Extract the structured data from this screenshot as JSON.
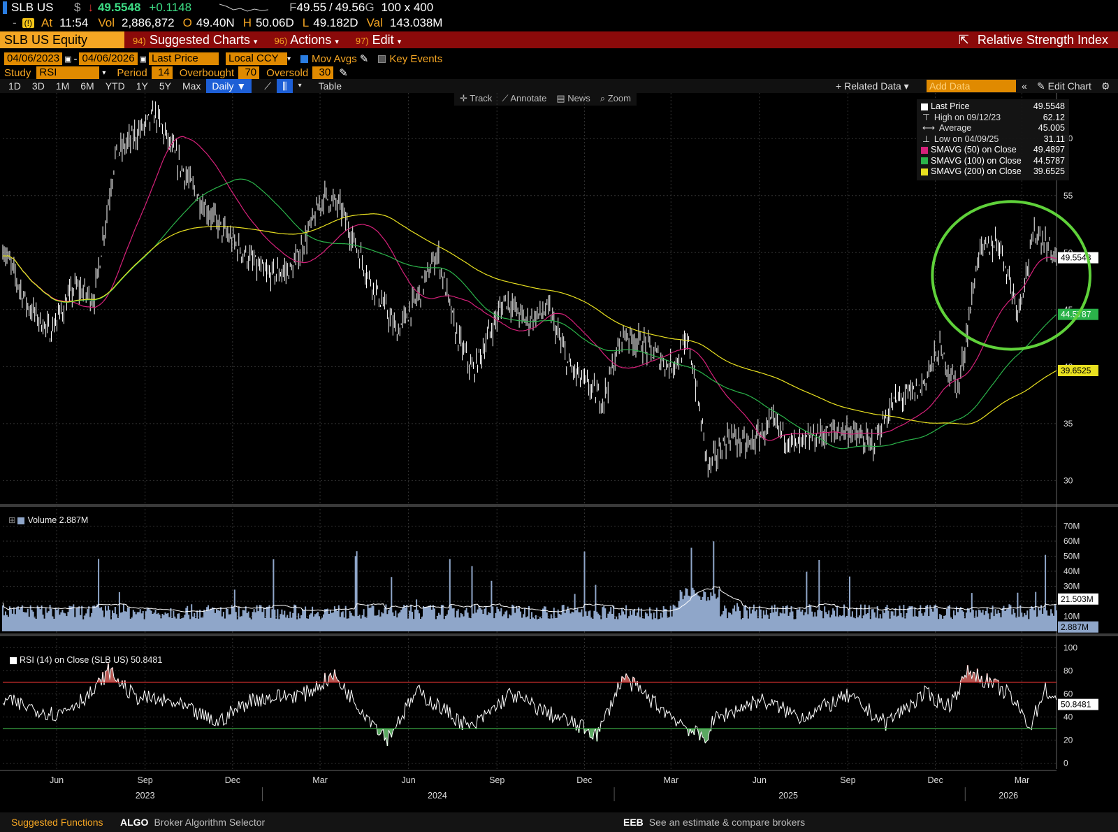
{
  "quote": {
    "ticker": "SLB US",
    "currency_symbol": "$",
    "arrow": "↓",
    "last": "49.5548",
    "change": "+0.1148",
    "bid": "49.55",
    "ask": "49.56",
    "size": "100 x 400",
    "at_label": "At",
    "time": "11:54",
    "vol_label": "Vol",
    "volume": "2,886,872",
    "open_label": "O",
    "open": "49.40N",
    "high_label": "H",
    "high": "50.06D",
    "low_label": "L",
    "low": "49.182D",
    "val_label": "Val",
    "value": "143.038M"
  },
  "titlebar": {
    "security": "SLB US Equity",
    "menus": [
      {
        "num": "94)",
        "label": "Suggested Charts"
      },
      {
        "num": "96)",
        "label": "Actions"
      },
      {
        "num": "97)",
        "label": "Edit"
      }
    ],
    "chart_title": "Relative Strength Index"
  },
  "controls": {
    "start_date": "04/06/2023",
    "end_date": "04/06/2026",
    "price_type": "Last Price",
    "currency": "Local CCY",
    "mov_avgs": "Mov Avgs",
    "key_events": "Key Events",
    "study_label": "Study",
    "study": "RSI",
    "period_label": "Period",
    "period": "14",
    "overbought_label": "Overbought",
    "overbought": "70",
    "oversold_label": "Oversold",
    "oversold": "30"
  },
  "periods": [
    "1D",
    "3D",
    "1M",
    "6M",
    "YTD",
    "1Y",
    "5Y",
    "Max"
  ],
  "frequency": "Daily",
  "table_label": "Table",
  "related_data": "Related Data",
  "add_data_placeholder": "Add Data",
  "edit_chart": "Edit Chart",
  "chart_tools": [
    "Track",
    "Annotate",
    "News",
    "Zoom"
  ],
  "legend": [
    {
      "label": "Last Price",
      "value": "49.5548",
      "color": "#ffffff"
    },
    {
      "label": "High on 09/12/23",
      "value": "62.12",
      "color": ""
    },
    {
      "label": "Average",
      "value": "45.005",
      "color": ""
    },
    {
      "label": "Low on 04/09/25",
      "value": "31.11",
      "color": ""
    },
    {
      "label": "SMAVG (50)  on Close",
      "value": "49.4897",
      "color": "#d6217a"
    },
    {
      "label": "SMAVG (100)  on Close",
      "value": "44.5787",
      "color": "#2bb34a"
    },
    {
      "label": "SMAVG (200)  on Close",
      "value": "39.6525",
      "color": "#e8e020"
    }
  ],
  "volume_legend": "Volume 2.887M",
  "rsi_legend": "RSI (14)   on Close (SLB US) 50.8481",
  "chart_data": {
    "type": "line",
    "price": {
      "ylim": [
        28,
        64
      ],
      "yticks": [
        30,
        35,
        40,
        45,
        50,
        55,
        60
      ],
      "series": [
        {
          "name": "Last Price",
          "color": "#ffffff",
          "x": [
            "2023-04-06",
            "2023-05-01",
            "2023-05-25",
            "2023-06-20",
            "2023-07-10",
            "2023-08-01",
            "2023-09-12",
            "2023-10-02",
            "2023-10-25",
            "2023-11-20",
            "2023-12-12",
            "2024-01-05",
            "2024-02-01",
            "2024-03-05",
            "2024-03-22",
            "2024-04-20",
            "2024-05-20",
            "2024-06-10",
            "2024-07-01",
            "2024-07-20",
            "2024-08-07",
            "2024-08-30",
            "2024-09-10",
            "2024-10-01",
            "2024-10-25",
            "2024-11-15",
            "2024-12-20",
            "2025-01-10",
            "2025-01-30",
            "2025-02-28",
            "2025-03-20",
            "2025-04-09",
            "2025-05-01",
            "2025-05-20",
            "2025-06-15",
            "2025-07-10",
            "2025-08-01",
            "2025-09-01",
            "2025-09-25",
            "2025-10-20",
            "2025-11-15",
            "2025-12-05",
            "2025-12-25",
            "2026-01-15",
            "2026-02-05",
            "2026-02-25",
            "2026-03-15",
            "2026-04-06"
          ],
          "y": [
            50.5,
            45.5,
            43,
            47,
            46,
            58.5,
            62.12,
            58.5,
            55,
            52,
            50,
            48,
            48.5,
            55,
            54,
            48,
            43,
            46,
            50,
            43,
            39.5,
            44,
            46,
            44,
            45,
            40,
            37,
            43,
            42,
            40,
            42,
            31.11,
            34,
            33,
            35,
            33,
            34,
            34.5,
            33,
            37,
            38,
            41.5,
            38,
            50,
            51,
            45,
            52,
            49.55
          ]
        },
        {
          "name": "SMAVG (50)",
          "color": "#d6217a",
          "y_last": 49.4897
        },
        {
          "name": "SMAVG (100)",
          "color": "#2bb34a",
          "y_last": 44.5787
        },
        {
          "name": "SMAVG (200)",
          "color": "#e8e020",
          "y_last": 39.6525
        }
      ],
      "axis_labels": [
        "49.5548",
        "44.5787",
        "39.6525"
      ]
    },
    "volume": {
      "ylim": [
        0,
        80
      ],
      "yticks_label": [
        "10M",
        "20M",
        "30M",
        "40M",
        "50M",
        "60M",
        "70M"
      ],
      "ytick_values": [
        10,
        20,
        30,
        40,
        50,
        60,
        70
      ],
      "last_avg_label": "21.503M",
      "last_label": "2.887M"
    },
    "rsi": {
      "ylim": [
        -5,
        105
      ],
      "yticks": [
        0,
        20,
        40,
        60,
        80,
        100
      ],
      "overbought": 70,
      "oversold": 30,
      "last_label": "50.8481",
      "x": [
        "2023-04-06",
        "2023-06-01",
        "2023-07-10",
        "2023-07-25",
        "2023-08-20",
        "2023-10-01",
        "2023-11-15",
        "2023-12-20",
        "2024-02-15",
        "2024-03-15",
        "2024-04-15",
        "2024-05-10",
        "2024-06-10",
        "2024-07-10",
        "2024-08-05",
        "2024-09-15",
        "2024-10-20",
        "2024-12-15",
        "2025-01-10",
        "2025-02-15",
        "2025-04-05",
        "2025-04-15",
        "2025-06-01",
        "2025-07-15",
        "2025-09-01",
        "2025-10-10",
        "2025-11-20",
        "2025-12-15",
        "2026-01-05",
        "2026-02-15",
        "2026-03-10",
        "2026-03-25",
        "2026-04-06"
      ],
      "y": [
        55,
        42,
        62,
        80,
        58,
        52,
        35,
        55,
        60,
        76,
        45,
        22,
        62,
        45,
        30,
        60,
        45,
        25,
        75,
        50,
        20,
        38,
        55,
        40,
        58,
        35,
        60,
        50,
        80,
        60,
        32,
        65,
        50.8
      ]
    },
    "x_axis": {
      "months": [
        {
          "label": "Jun",
          "date": "2023-06-01"
        },
        {
          "label": "Sep",
          "date": "2023-09-01"
        },
        {
          "label": "Dec",
          "date": "2023-12-01"
        },
        {
          "label": "Mar",
          "date": "2024-03-01"
        },
        {
          "label": "Jun",
          "date": "2024-06-01"
        },
        {
          "label": "Sep",
          "date": "2024-09-01"
        },
        {
          "label": "Dec",
          "date": "2024-12-01"
        },
        {
          "label": "Mar",
          "date": "2025-03-01"
        },
        {
          "label": "Jun",
          "date": "2025-06-01"
        },
        {
          "label": "Sep",
          "date": "2025-09-01"
        },
        {
          "label": "Dec",
          "date": "2025-12-01"
        },
        {
          "label": "Mar",
          "date": "2026-03-01"
        }
      ],
      "years": [
        {
          "label": "2023",
          "date": "2023-09-01"
        },
        {
          "label": "2024",
          "date": "2024-07-01"
        },
        {
          "label": "2025",
          "date": "2025-07-01"
        },
        {
          "label": "2026",
          "date": "2026-02-15"
        }
      ],
      "start": "2023-04-06",
      "end": "2026-04-06"
    },
    "annotation": {
      "shape": "ellipse",
      "color": "#5fd13a",
      "date_from": "2025-11-25",
      "date_to": "2026-04-06",
      "price_from": 42.5,
      "price_to": 53.5
    }
  },
  "footer": {
    "suggested": "Suggested Functions",
    "items": [
      {
        "code": "ALGO",
        "desc": "Broker Algorithm Selector"
      },
      {
        "code": "EEB",
        "desc": "See an estimate & compare brokers"
      }
    ]
  }
}
